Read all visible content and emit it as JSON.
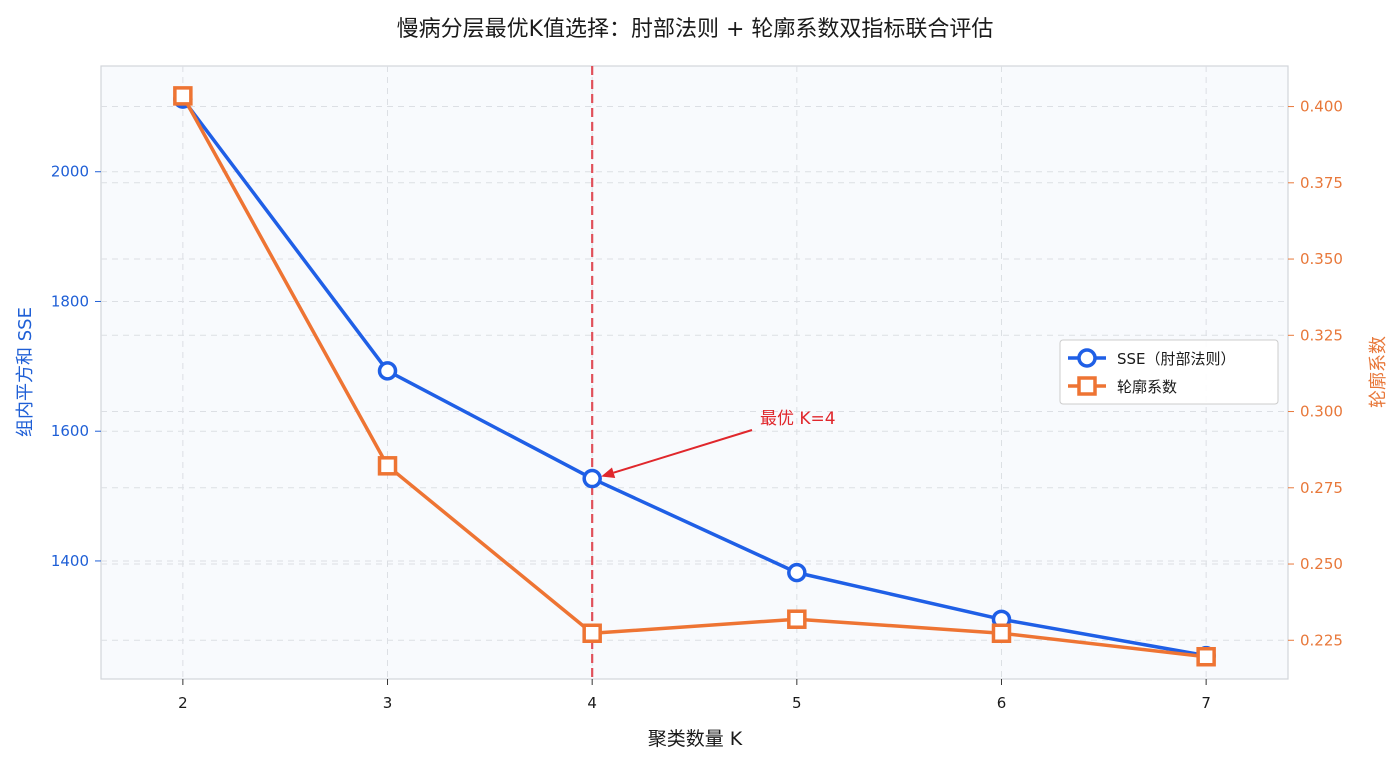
{
  "chart_data": {
    "type": "line",
    "title": "慢病分层最优K值选择：肘部法则 + 轮廓系数双指标联合评估",
    "xlabel": "聚类数量 K",
    "ylabel_left": "组内平方和 SSE",
    "ylabel_right": "轮廓系数",
    "x": [
      2,
      3,
      4,
      5,
      6,
      7
    ],
    "x_tick_labels": [
      "2",
      "3",
      "4",
      "5",
      "6",
      "7"
    ],
    "y_left_ticks": [
      "1400",
      "1600",
      "1800",
      "2000"
    ],
    "y_right_ticks": [
      "0.225",
      "0.250",
      "0.275",
      "0.300",
      "0.325",
      "0.350",
      "0.375",
      "0.400"
    ],
    "xlim": [
      1.75,
      7.25
    ],
    "ylim_left": [
      1218,
      2163
    ],
    "ylim_right": [
      0.2123,
      0.4133
    ],
    "series": [
      {
        "name": "SSE（肘部法则）",
        "axis": "left",
        "marker": "circle",
        "color": "#1f5fe6",
        "values": [
          2112,
          1693,
          1527,
          1382,
          1310,
          1254
        ]
      },
      {
        "name": "轮廓系数",
        "axis": "right",
        "marker": "square",
        "color": "#ee7433",
        "values": [
          0.4035,
          0.2822,
          0.2273,
          0.2319,
          0.2273,
          0.2196
        ]
      }
    ],
    "optimal_k": 4,
    "annotation": "最优 K=4",
    "legend_position": "center-right",
    "grid": true
  }
}
